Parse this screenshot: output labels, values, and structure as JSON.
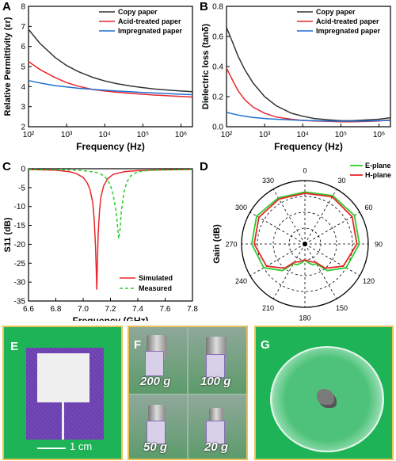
{
  "panels": {
    "A": {
      "letter": "A"
    },
    "B": {
      "letter": "B"
    },
    "C": {
      "letter": "C"
    },
    "D": {
      "letter": "D"
    },
    "E": {
      "letter": "E",
      "scale_label": "1 cm"
    },
    "F": {
      "letter": "F",
      "weights": [
        "200 g",
        "100 g",
        "50 g",
        "20 g"
      ]
    },
    "G": {
      "letter": "G"
    }
  },
  "colors": {
    "copy": "#333333",
    "acid": "#e8262a",
    "impreg": "#1f6fd1",
    "simulated": "#e8262a",
    "measured": "#2ecc2e",
    "photo_bg": "#1fb357",
    "photo_border": "#e9c35a",
    "substrate": "#6a3fb0"
  },
  "chart_data": [
    {
      "type": "line",
      "panel": "A",
      "xlabel": "Frequency (Hz)",
      "ylabel": "Relative Permittivity (εr)",
      "xscale": "log",
      "xlim": [
        100,
        2000000
      ],
      "ylim": [
        2,
        8
      ],
      "xticks": [
        100,
        1000,
        10000,
        100000,
        1000000
      ],
      "xtick_labels": [
        "10²",
        "10³",
        "10⁴",
        "10⁵",
        "10⁶"
      ],
      "yticks": [
        2,
        3,
        4,
        5,
        6,
        7,
        8
      ],
      "legend_position": "top-right",
      "series": [
        {
          "name": "Copy paper",
          "x": [
            100,
            200,
            500,
            1000,
            2000,
            5000,
            10000,
            20000,
            50000,
            100000,
            200000,
            500000,
            1000000,
            2000000
          ],
          "y": [
            6.85,
            6.15,
            5.45,
            5.05,
            4.75,
            4.45,
            4.28,
            4.15,
            4.02,
            3.95,
            3.88,
            3.82,
            3.78,
            3.75
          ]
        },
        {
          "name": "Acid-treated paper",
          "x": [
            100,
            200,
            500,
            1000,
            2000,
            5000,
            10000,
            20000,
            50000,
            100000,
            200000,
            500000,
            1000000,
            2000000
          ],
          "y": [
            5.25,
            4.85,
            4.45,
            4.2,
            4.02,
            3.85,
            3.78,
            3.72,
            3.66,
            3.62,
            3.58,
            3.54,
            3.51,
            3.48
          ]
        },
        {
          "name": "Impregnated paper",
          "x": [
            100,
            200,
            500,
            1000,
            2000,
            5000,
            10000,
            20000,
            50000,
            100000,
            200000,
            500000,
            1000000,
            2000000
          ],
          "y": [
            4.3,
            4.18,
            4.05,
            3.98,
            3.92,
            3.86,
            3.82,
            3.78,
            3.74,
            3.71,
            3.68,
            3.65,
            3.62,
            3.6
          ]
        }
      ]
    },
    {
      "type": "line",
      "panel": "B",
      "xlabel": "Frequency (Hz)",
      "ylabel": "Dielectric loss (tanδ)",
      "xscale": "log",
      "xlim": [
        100,
        2000000
      ],
      "ylim": [
        0.0,
        0.8
      ],
      "xticks": [
        100,
        1000,
        10000,
        100000,
        1000000
      ],
      "xtick_labels": [
        "10²",
        "10³",
        "10⁴",
        "10⁵",
        "10⁶"
      ],
      "yticks": [
        0.0,
        0.2,
        0.4,
        0.6,
        0.8
      ],
      "ytick_labels": [
        "0.0",
        "0.2",
        "0.4",
        "0.6",
        "0.8"
      ],
      "legend_position": "top-right",
      "series": [
        {
          "name": "Copy paper",
          "x": [
            100,
            150,
            200,
            300,
            500,
            1000,
            2000,
            5000,
            10000,
            20000,
            50000,
            100000,
            200000,
            500000,
            1000000,
            2000000
          ],
          "y": [
            0.66,
            0.55,
            0.47,
            0.38,
            0.29,
            0.2,
            0.14,
            0.09,
            0.07,
            0.055,
            0.045,
            0.04,
            0.04,
            0.045,
            0.05,
            0.06
          ]
        },
        {
          "name": "Acid-treated paper",
          "x": [
            100,
            150,
            200,
            300,
            500,
            1000,
            2000,
            5000,
            10000,
            20000,
            50000,
            100000,
            200000,
            500000,
            1000000,
            2000000
          ],
          "y": [
            0.39,
            0.3,
            0.24,
            0.18,
            0.13,
            0.09,
            0.065,
            0.05,
            0.042,
            0.038,
            0.035,
            0.033,
            0.033,
            0.035,
            0.038,
            0.045
          ]
        },
        {
          "name": "Impregnated paper",
          "x": [
            100,
            150,
            200,
            300,
            500,
            1000,
            2000,
            5000,
            10000,
            20000,
            50000,
            100000,
            200000,
            500000,
            1000000,
            2000000
          ],
          "y": [
            0.095,
            0.085,
            0.078,
            0.07,
            0.062,
            0.055,
            0.05,
            0.045,
            0.042,
            0.04,
            0.038,
            0.037,
            0.037,
            0.038,
            0.04,
            0.042
          ]
        }
      ]
    },
    {
      "type": "line",
      "panel": "C",
      "xlabel": "Frequency (GHz)",
      "ylabel": "S11 (dB)",
      "xlim": [
        6.6,
        7.8
      ],
      "ylim": [
        -35,
        0
      ],
      "xticks": [
        6.6,
        6.8,
        7.0,
        7.2,
        7.4,
        7.6,
        7.8
      ],
      "xtick_labels": [
        "6.6",
        "6.8",
        "7.0",
        "7.2",
        "7.4",
        "7.6",
        "7.8"
      ],
      "yticks": [
        -35,
        -30,
        -25,
        -20,
        -15,
        -10,
        -5,
        0
      ],
      "legend_position": "bottom-right",
      "series": [
        {
          "name": "Simulated",
          "style": "solid",
          "x": [
            6.6,
            6.8,
            6.9,
            6.95,
            7.0,
            7.03,
            7.05,
            7.07,
            7.08,
            7.09,
            7.095,
            7.1,
            7.105,
            7.11,
            7.12,
            7.13,
            7.15,
            7.18,
            7.22,
            7.3,
            7.4,
            7.6,
            7.8
          ],
          "y": [
            -0.2,
            -0.4,
            -0.8,
            -1.3,
            -2.3,
            -3.8,
            -5.5,
            -9.0,
            -13.0,
            -20.0,
            -26.0,
            -32.0,
            -24.0,
            -17.0,
            -11.0,
            -7.5,
            -4.5,
            -2.6,
            -1.5,
            -0.8,
            -0.5,
            -0.3,
            -0.2
          ]
        },
        {
          "name": "Measured",
          "style": "dashed",
          "x": [
            6.6,
            6.9,
            7.0,
            7.1,
            7.15,
            7.18,
            7.2,
            7.22,
            7.24,
            7.25,
            7.26,
            7.27,
            7.28,
            7.3,
            7.32,
            7.35,
            7.4,
            7.5,
            7.8
          ],
          "y": [
            -0.2,
            -0.3,
            -0.5,
            -1.0,
            -1.8,
            -3.0,
            -4.5,
            -7.0,
            -11.0,
            -14.5,
            -18.5,
            -16.0,
            -11.0,
            -6.0,
            -3.5,
            -1.8,
            -0.8,
            -0.4,
            -0.2
          ]
        }
      ]
    },
    {
      "type": "polar",
      "panel": "D",
      "ylabel": "Gain (dB)",
      "angle_ticks": [
        0,
        30,
        60,
        90,
        120,
        150,
        180,
        210,
        240,
        270,
        300,
        330
      ],
      "legend_position": "top-right",
      "series": [
        {
          "name": "E-plane",
          "angles": [
            0,
            30,
            60,
            90,
            120,
            140,
            150,
            160,
            170,
            180,
            190,
            200,
            210,
            220,
            240,
            270,
            300,
            330
          ],
          "r": [
            0.82,
            0.88,
            0.9,
            0.86,
            0.75,
            0.55,
            0.36,
            0.35,
            0.3,
            0.26,
            0.3,
            0.35,
            0.36,
            0.55,
            0.75,
            0.84,
            0.88,
            0.84
          ]
        },
        {
          "name": "H-plane",
          "angles": [
            0,
            30,
            60,
            90,
            120,
            140,
            150,
            160,
            170,
            180,
            190,
            200,
            210,
            220,
            240,
            270,
            300,
            330
          ],
          "r": [
            0.8,
            0.86,
            0.86,
            0.82,
            0.7,
            0.5,
            0.33,
            0.3,
            0.27,
            0.25,
            0.27,
            0.3,
            0.33,
            0.5,
            0.7,
            0.8,
            0.84,
            0.82
          ]
        }
      ]
    }
  ]
}
